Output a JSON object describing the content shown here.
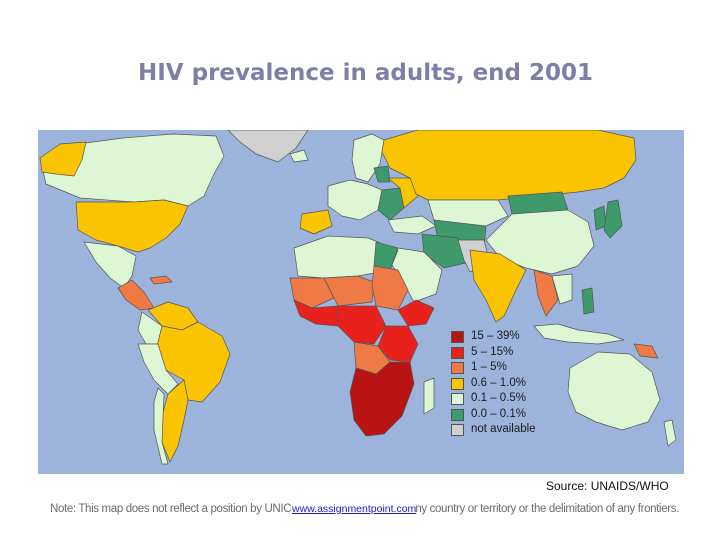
{
  "title": "HIV prevalence in adults, end 2001",
  "legend": {
    "items": [
      {
        "label": "15 – 39%",
        "color": "#b81414"
      },
      {
        "label": "5 – 15%",
        "color": "#e8211c"
      },
      {
        "label": "1 – 5%",
        "color": "#f07a45"
      },
      {
        "label": "0.6 – 1.0%",
        "color": "#fbc400"
      },
      {
        "label": "0.1 – 0.5%",
        "color": "#ddf7d5"
      },
      {
        "label": "0.0 – 0.1%",
        "color": "#3e9a6b"
      },
      {
        "label": "not available",
        "color": "#d0d0d0"
      }
    ]
  },
  "source": "Source: UNAIDS/WHO",
  "note": "Note: This map does not reflect a position by UNICEF on the legal status of any country or territory or the delimitation of any frontiers.",
  "link": "www.assignmentpoint.com",
  "colors": {
    "ocean": "#9cb4dc",
    "border": "#555555",
    "band_15_39": "#b81414",
    "band_5_15": "#e8211c",
    "band_1_5": "#f07a45",
    "band_06_10": "#fbc400",
    "band_01_05": "#ddf7d5",
    "band_00_01": "#3e9a6b",
    "not_available": "#d0d0d0"
  }
}
